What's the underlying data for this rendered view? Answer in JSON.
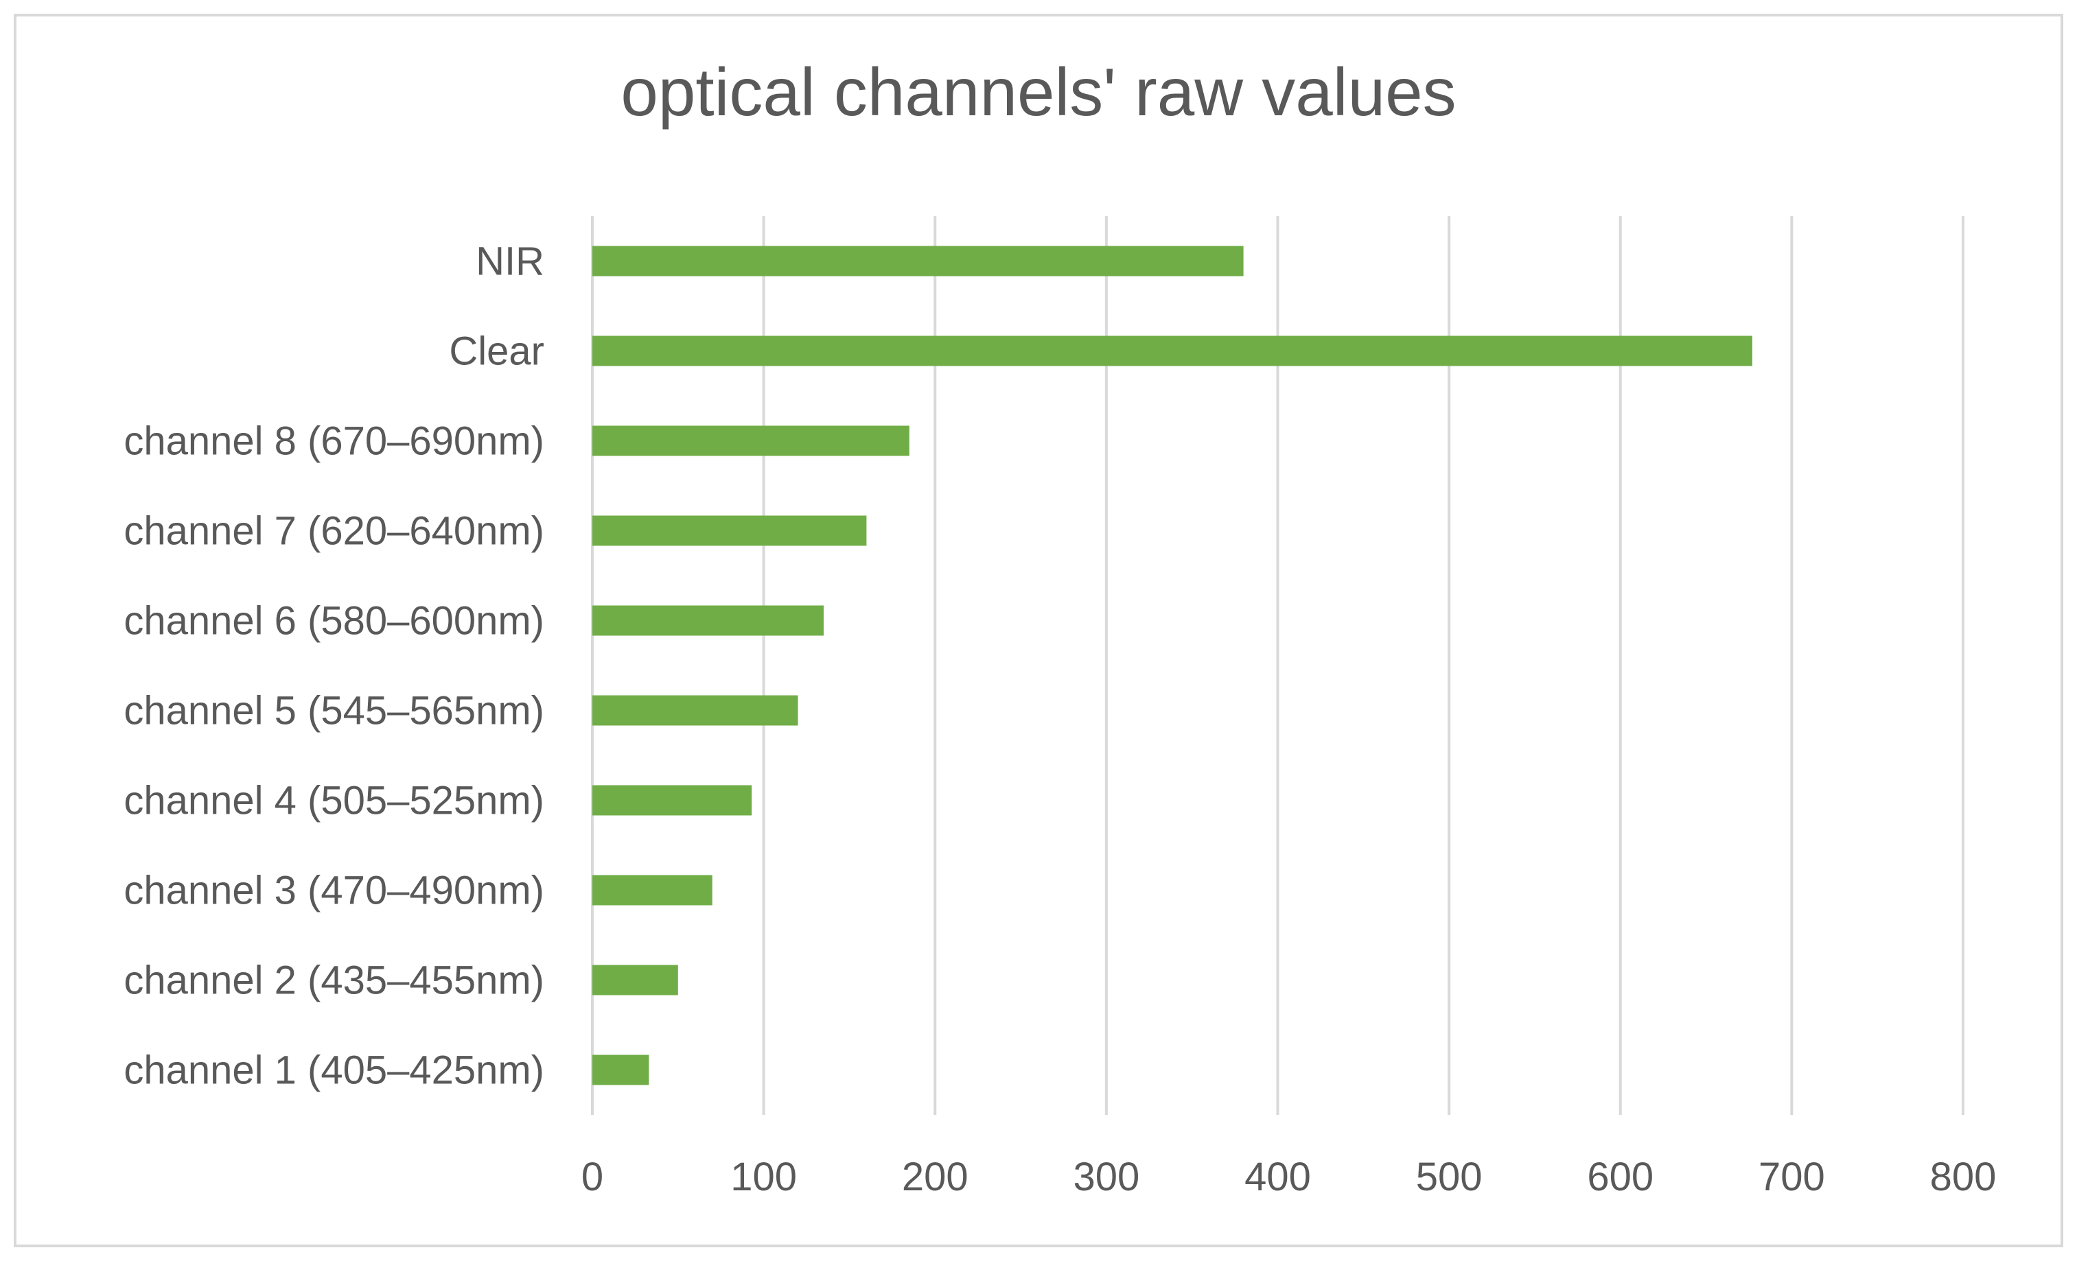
{
  "chart_data": {
    "type": "bar",
    "orientation": "horizontal",
    "title": "optical channels' raw values",
    "xlabel": "",
    "ylabel": "",
    "categories": [
      "NIR",
      "Clear",
      "channel 8 (670–690nm)",
      "channel 7 (620–640nm)",
      "channel 6 (580–600nm)",
      "channel 5 (545–565nm)",
      "channel 4 (505–525nm)",
      "channel 3 (470–490nm)",
      "channel 2 (435–455nm)",
      "channel 1 (405–425nm)"
    ],
    "values": [
      380,
      677,
      185,
      160,
      135,
      120,
      93,
      70,
      50,
      33
    ],
    "xlim": [
      0,
      800
    ],
    "xticks": [
      0,
      100,
      200,
      300,
      400,
      500,
      600,
      700,
      800
    ],
    "grid": "vertical",
    "legend": "none",
    "bar_color": "#70ad47",
    "grid_color": "#d9d9d9",
    "text_color": "#595959"
  }
}
